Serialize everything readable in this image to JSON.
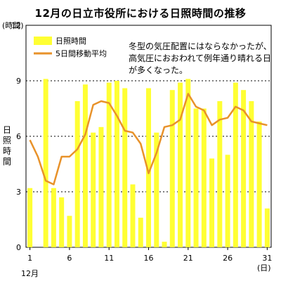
{
  "chart_data": {
    "type": "bar",
    "title": "12月の日立市役所における日照時間の推移",
    "ylabel": "日照時間",
    "y_unit": "(時間)",
    "x_unit": "(日)",
    "month_label": "12月",
    "note": "冬型の気圧配置にはならなかったが、高気圧におおわれて例年通り晴れる日が多くなった。",
    "ylim": [
      0,
      12
    ],
    "yticks": [
      0,
      3,
      6,
      9,
      12
    ],
    "xticks": [
      1,
      6,
      11,
      16,
      21,
      26,
      31
    ],
    "grid": true,
    "legend_position": "top-left",
    "x": [
      1,
      2,
      3,
      4,
      5,
      6,
      7,
      8,
      9,
      10,
      11,
      12,
      13,
      14,
      15,
      16,
      17,
      18,
      19,
      20,
      21,
      22,
      23,
      24,
      25,
      26,
      27,
      28,
      29,
      30,
      31
    ],
    "series": [
      {
        "name": "日照時間",
        "type": "bar",
        "color": "#ffff33",
        "values": [
          3.2,
          0.0,
          9.1,
          3.2,
          2.7,
          1.7,
          7.9,
          8.8,
          6.2,
          6.5,
          8.9,
          9.0,
          8.6,
          3.4,
          1.6,
          8.6,
          6.2,
          0.3,
          8.5,
          8.9,
          9.1,
          7.5,
          7.5,
          4.8,
          7.9,
          5.0,
          8.9,
          8.5,
          7.9,
          6.8,
          2.1
        ]
      },
      {
        "name": "5日間移動平均",
        "type": "line",
        "color": "#e8922a",
        "values": [
          5.8,
          4.9,
          3.6,
          3.4,
          4.9,
          4.9,
          5.3,
          6.1,
          7.7,
          7.9,
          7.8,
          7.1,
          6.3,
          6.2,
          5.6,
          4.0,
          5.1,
          6.5,
          6.6,
          6.9,
          8.3,
          7.6,
          7.4,
          6.6,
          6.9,
          7.0,
          7.6,
          7.4,
          6.8,
          6.7,
          6.6
        ]
      }
    ]
  }
}
